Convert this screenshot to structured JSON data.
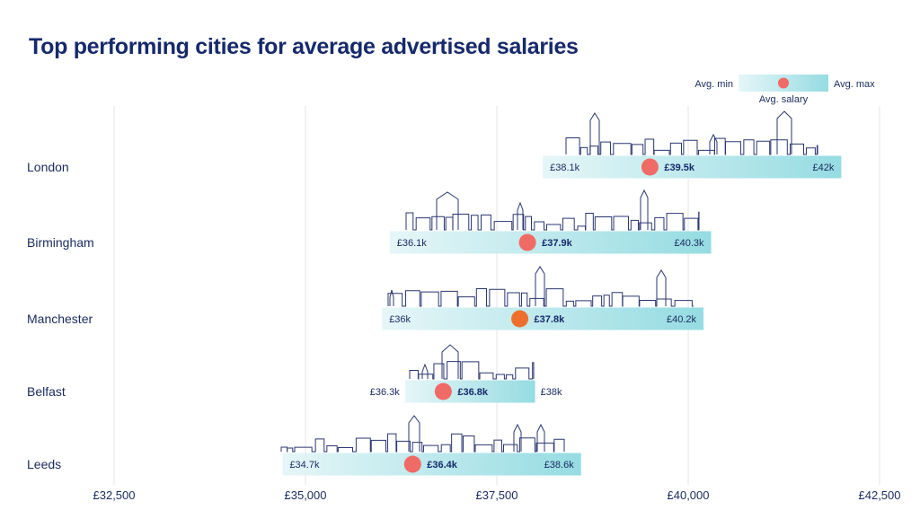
{
  "title": "Top performing cities for average advertised salaries",
  "legend": {
    "min_label": "Avg. min",
    "max_label": "Avg. max",
    "avg_label": "Avg. salary"
  },
  "colors": {
    "bar_light": "#e4f5f7",
    "bar_dark": "#97dde3",
    "marker": "#f06a66",
    "marker_alt": "#ee6f2d",
    "grid": "#e6e6ea",
    "skyline": "#2a3670"
  },
  "chart_data": {
    "type": "range",
    "title": "Top performing cities for average advertised salaries",
    "xlim": [
      32500,
      42500
    ],
    "x_ticks": [
      32500,
      35000,
      37500,
      40000,
      42500
    ],
    "x_tick_labels": [
      "£32,500",
      "£35,000",
      "£37,500",
      "£40,000",
      "£42,500"
    ],
    "grid": true,
    "legend_position": "top-right",
    "series": [
      {
        "city": "London",
        "min": 38100,
        "avg": 39500,
        "max": 42000,
        "min_label": "£38.1k",
        "avg_label": "£39.5k",
        "max_label": "£42k"
      },
      {
        "city": "Birmingham",
        "min": 36100,
        "avg": 37900,
        "max": 40300,
        "min_label": "£36.1k",
        "avg_label": "£37.9k",
        "max_label": "£40.3k"
      },
      {
        "city": "Manchester",
        "min": 36000,
        "avg": 37800,
        "max": 40200,
        "min_label": "£36k",
        "avg_label": "£37.8k",
        "max_label": "£40.2k"
      },
      {
        "city": "Belfast",
        "min": 36300,
        "avg": 36800,
        "max": 38000,
        "min_label": "£36.3k",
        "avg_label": "£36.8k",
        "max_label": "£38k"
      },
      {
        "city": "Leeds",
        "min": 34700,
        "avg": 36400,
        "max": 38600,
        "min_label": "£34.7k",
        "avg_label": "£36.4k",
        "max_label": "£38.6k"
      }
    ]
  }
}
